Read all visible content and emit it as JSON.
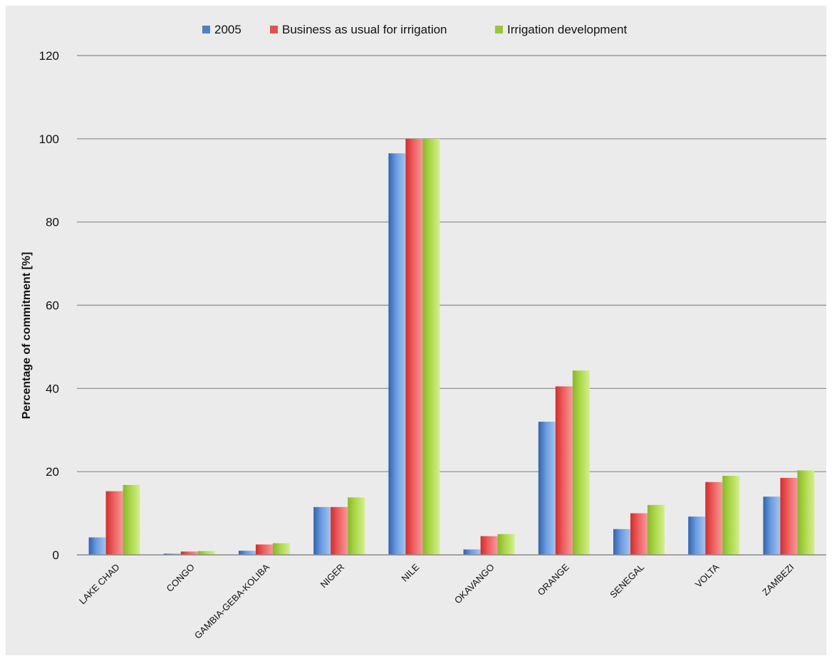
{
  "chart_data": {
    "type": "bar",
    "title": "",
    "xlabel": "",
    "ylabel": "Percentage of commitment [%]",
    "ylim": [
      0,
      120
    ],
    "yticks": [
      0,
      20,
      40,
      60,
      80,
      100,
      120
    ],
    "grid": true,
    "legend_position": "top-center",
    "categories": [
      "LAKE CHAD",
      "CONGO",
      "GAMBIA-GEBA-KOLIBA",
      "NIGER",
      "NILE",
      "OKAVANGO",
      "ORANGE",
      "SENEGAL",
      "VOLTA",
      "ZAMBEZI"
    ],
    "series": [
      {
        "name": "2005",
        "color": "#4f81bd",
        "values": [
          4.2,
          0.3,
          1.0,
          11.5,
          96.5,
          1.3,
          32.0,
          6.2,
          9.2,
          14.0
        ]
      },
      {
        "name": "Business as usual for irrigation",
        "color": "#e05252",
        "values": [
          15.3,
          0.8,
          2.5,
          11.5,
          100,
          4.5,
          40.5,
          10.0,
          17.5,
          18.5
        ]
      },
      {
        "name": "Irrigation development",
        "color": "#9bc43b",
        "values": [
          16.8,
          0.9,
          2.8,
          13.8,
          100,
          5.0,
          44.3,
          12.0,
          19.0,
          20.3
        ]
      }
    ]
  }
}
